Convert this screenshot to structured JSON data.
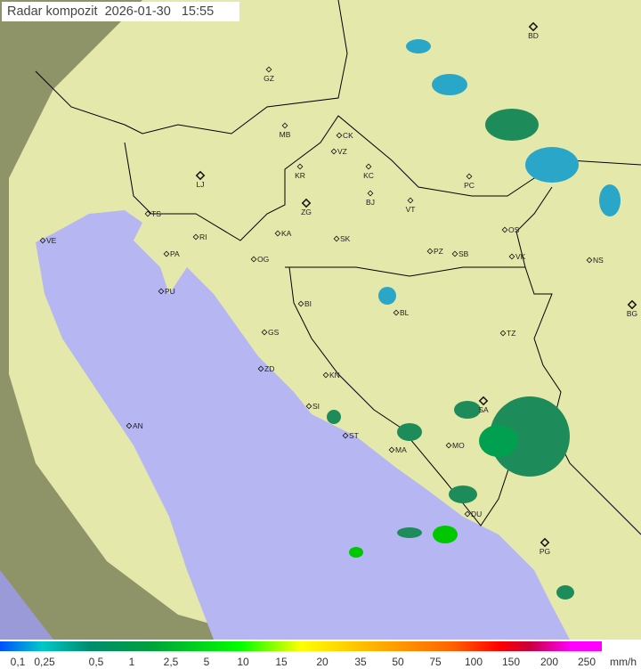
{
  "title": "Radar kompozit  2026-01-30   15:55",
  "legend": {
    "unit": "mm/h",
    "labels": [
      "0,1",
      "0,25",
      "0,5",
      "1",
      "2,5",
      "5",
      "10",
      "15",
      "20",
      "35",
      "50",
      "75",
      "100",
      "150",
      "200",
      "250"
    ]
  },
  "colors": {
    "sea": "#b4b4f0",
    "land": "#e2e6a8",
    "outside": "#9a9a6a",
    "border": "#000000",
    "rain_light": "#2aa6c8",
    "rain_mid": "#1e8c5a",
    "rain_heavy": "#00c800"
  },
  "cities": [
    {
      "code": "BD",
      "capital": true
    },
    {
      "code": "GZ"
    },
    {
      "code": "MB"
    },
    {
      "code": "CK"
    },
    {
      "code": "VZ"
    },
    {
      "code": "KR"
    },
    {
      "code": "KC"
    },
    {
      "code": "PC"
    },
    {
      "code": "LJ",
      "capital": true
    },
    {
      "code": "BJ"
    },
    {
      "code": "ZG",
      "capital": true
    },
    {
      "code": "VT"
    },
    {
      "code": "TS"
    },
    {
      "code": "OS"
    },
    {
      "code": "VE"
    },
    {
      "code": "KA"
    },
    {
      "code": "SK"
    },
    {
      "code": "RI"
    },
    {
      "code": "PZ"
    },
    {
      "code": "SB"
    },
    {
      "code": "VK"
    },
    {
      "code": "NS"
    },
    {
      "code": "PA"
    },
    {
      "code": "OG"
    },
    {
      "code": "PU"
    },
    {
      "code": "BI"
    },
    {
      "code": "BL"
    },
    {
      "code": "BG",
      "capital": true
    },
    {
      "code": "GS"
    },
    {
      "code": "TZ"
    },
    {
      "code": "ZD"
    },
    {
      "code": "KN"
    },
    {
      "code": "SA",
      "capital": true
    },
    {
      "code": "SI"
    },
    {
      "code": "AN"
    },
    {
      "code": "ST"
    },
    {
      "code": "MA"
    },
    {
      "code": "MO"
    },
    {
      "code": "DU"
    },
    {
      "code": "PG",
      "capital": true
    }
  ]
}
